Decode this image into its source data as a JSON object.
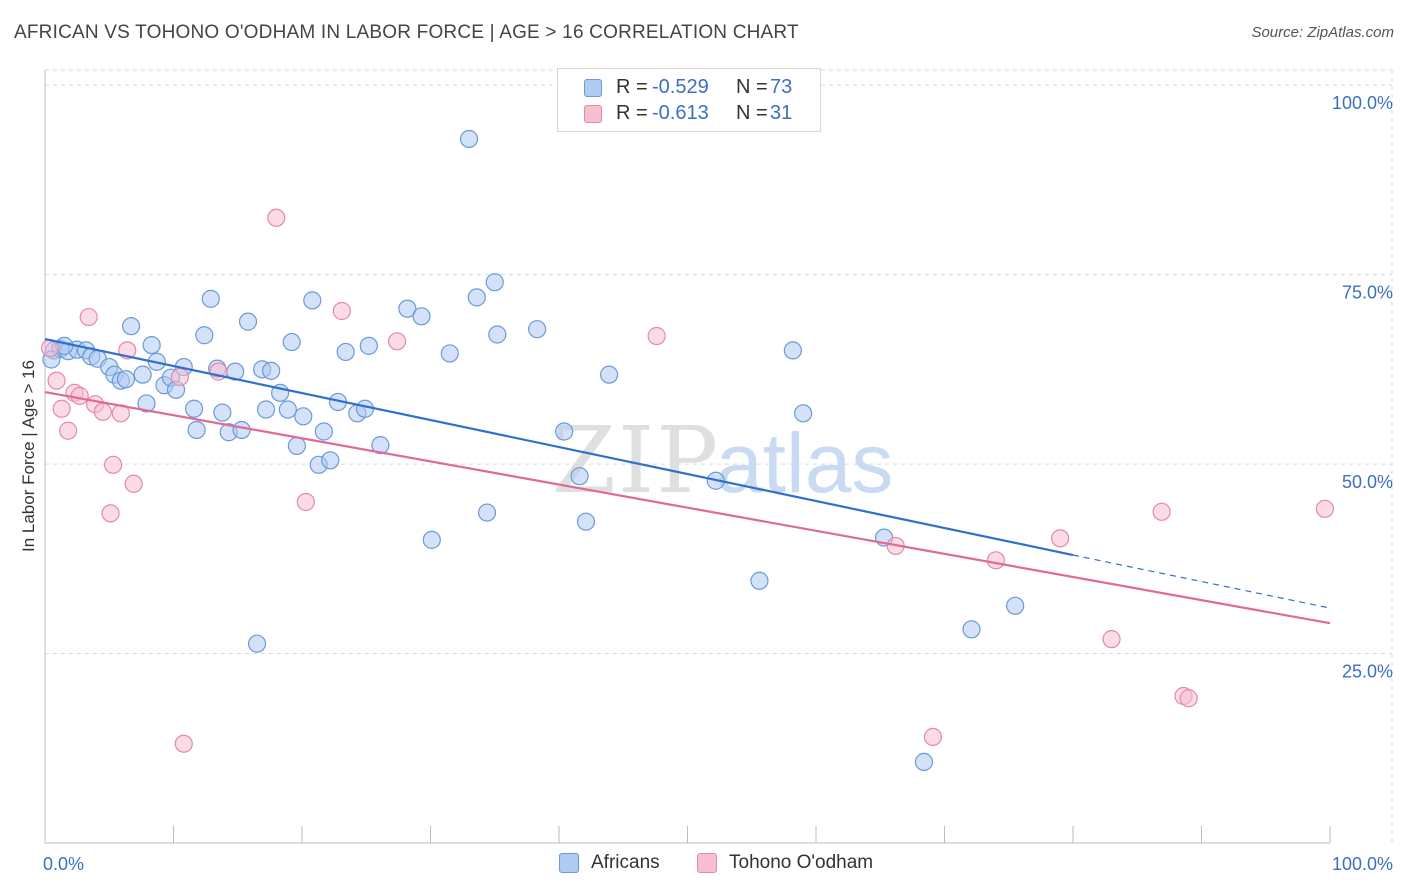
{
  "header": {
    "title": "AFRICAN VS TOHONO O'ODHAM IN LABOR FORCE | AGE > 16 CORRELATION CHART",
    "source": "Source: ZipAtlas.com"
  },
  "legend_top": {
    "rows": [
      {
        "r_label": "R =",
        "r_value": "-0.529",
        "n_label": "N =",
        "n_value": "73"
      },
      {
        "r_label": "R =",
        "r_value": "-0.613",
        "n_label": "N =",
        "n_value": "31"
      }
    ]
  },
  "legend_bottom": {
    "items": [
      {
        "label": "Africans"
      },
      {
        "label": "Tohono O'odham"
      }
    ]
  },
  "watermark": {
    "zip": "ZIP",
    "atlas": "atlas"
  },
  "colors": {
    "blue_fill": "#aecbf2",
    "blue_stroke": "#6b9ad6",
    "blue_line": "#2f6fce",
    "pink_fill": "#f7bdd0",
    "pink_stroke": "#e48aa8",
    "pink_line": "#e06a95",
    "tick_text": "#3c6fc4",
    "grid": "#d9d9d9"
  },
  "chart_data": {
    "type": "scatter",
    "title": "AFRICAN VS TOHONO O'ODHAM IN LABOR FORCE | AGE > 16 CORRELATION CHART",
    "xlabel": "",
    "ylabel": "In Labor Force | Age > 16",
    "xlim": [
      0,
      100
    ],
    "ylim": [
      0,
      102
    ],
    "x_tick_labels": [
      "0.0%",
      "100.0%"
    ],
    "y_ticks": [
      25,
      50,
      75,
      100
    ],
    "y_tick_labels": [
      "25.0%",
      "50.0%",
      "75.0%",
      "100.0%"
    ],
    "grid": true,
    "legend_placement": "top-center",
    "series": [
      {
        "name": "Africans",
        "color": "#aecbf2",
        "r": -0.529,
        "n": 73,
        "trend": {
          "x": [
            0,
            80
          ],
          "y": [
            66.5,
            38.0
          ]
        },
        "trend_dashed": {
          "x": [
            80,
            100
          ],
          "y": [
            38.0,
            31.0
          ]
        },
        "points": [
          {
            "x": 0.7,
            "y": 65.0
          },
          {
            "x": 1.2,
            "y": 65.2
          },
          {
            "x": 1.8,
            "y": 64.9
          },
          {
            "x": 2.5,
            "y": 65.1
          },
          {
            "x": 3.2,
            "y": 65.0
          },
          {
            "x": 3.6,
            "y": 64.2
          },
          {
            "x": 4.1,
            "y": 63.9
          },
          {
            "x": 5.0,
            "y": 62.8
          },
          {
            "x": 5.4,
            "y": 61.8
          },
          {
            "x": 5.9,
            "y": 61.0
          },
          {
            "x": 6.3,
            "y": 61.2
          },
          {
            "x": 6.7,
            "y": 68.2
          },
          {
            "x": 7.6,
            "y": 61.8
          },
          {
            "x": 7.9,
            "y": 58.0
          },
          {
            "x": 8.3,
            "y": 65.7
          },
          {
            "x": 8.7,
            "y": 63.5
          },
          {
            "x": 9.3,
            "y": 60.4
          },
          {
            "x": 9.8,
            "y": 61.4
          },
          {
            "x": 10.2,
            "y": 59.8
          },
          {
            "x": 10.8,
            "y": 62.8
          },
          {
            "x": 11.6,
            "y": 57.3
          },
          {
            "x": 11.8,
            "y": 54.5
          },
          {
            "x": 12.4,
            "y": 67.0
          },
          {
            "x": 12.9,
            "y": 71.8
          },
          {
            "x": 13.4,
            "y": 62.6
          },
          {
            "x": 13.8,
            "y": 56.8
          },
          {
            "x": 14.3,
            "y": 54.2
          },
          {
            "x": 14.8,
            "y": 62.2
          },
          {
            "x": 15.3,
            "y": 54.5
          },
          {
            "x": 15.8,
            "y": 68.8
          },
          {
            "x": 16.5,
            "y": 26.3
          },
          {
            "x": 16.9,
            "y": 62.5
          },
          {
            "x": 17.2,
            "y": 57.2
          },
          {
            "x": 17.6,
            "y": 62.3
          },
          {
            "x": 18.3,
            "y": 59.4
          },
          {
            "x": 18.9,
            "y": 57.2
          },
          {
            "x": 19.2,
            "y": 66.1
          },
          {
            "x": 19.6,
            "y": 52.4
          },
          {
            "x": 20.1,
            "y": 56.3
          },
          {
            "x": 20.8,
            "y": 71.6
          },
          {
            "x": 21.3,
            "y": 49.9
          },
          {
            "x": 21.7,
            "y": 54.3
          },
          {
            "x": 22.2,
            "y": 50.5
          },
          {
            "x": 22.8,
            "y": 58.2
          },
          {
            "x": 23.4,
            "y": 64.8
          },
          {
            "x": 24.3,
            "y": 56.7
          },
          {
            "x": 24.9,
            "y": 57.3
          },
          {
            "x": 25.2,
            "y": 65.6
          },
          {
            "x": 26.1,
            "y": 52.5
          },
          {
            "x": 28.2,
            "y": 70.5
          },
          {
            "x": 29.3,
            "y": 69.5
          },
          {
            "x": 30.1,
            "y": 40.0
          },
          {
            "x": 31.5,
            "y": 64.6
          },
          {
            "x": 33.0,
            "y": 92.9
          },
          {
            "x": 33.6,
            "y": 72.0
          },
          {
            "x": 34.4,
            "y": 43.6
          },
          {
            "x": 35.0,
            "y": 74.0
          },
          {
            "x": 35.2,
            "y": 67.1
          },
          {
            "x": 38.3,
            "y": 67.8
          },
          {
            "x": 40.4,
            "y": 54.3
          },
          {
            "x": 41.6,
            "y": 48.4
          },
          {
            "x": 42.1,
            "y": 42.4
          },
          {
            "x": 43.9,
            "y": 61.8
          },
          {
            "x": 52.2,
            "y": 47.8
          },
          {
            "x": 55.6,
            "y": 34.6
          },
          {
            "x": 58.2,
            "y": 65.0
          },
          {
            "x": 59.0,
            "y": 56.7
          },
          {
            "x": 65.3,
            "y": 40.3
          },
          {
            "x": 68.4,
            "y": 10.7
          },
          {
            "x": 72.1,
            "y": 28.2
          },
          {
            "x": 75.5,
            "y": 31.3
          },
          {
            "x": 0.5,
            "y": 63.8
          },
          {
            "x": 1.5,
            "y": 65.6
          }
        ]
      },
      {
        "name": "Tohono O'odham",
        "color": "#f7bdd0",
        "r": -0.613,
        "n": 31,
        "trend": {
          "x": [
            0,
            100
          ],
          "y": [
            59.5,
            29.0
          ]
        },
        "points": [
          {
            "x": 0.4,
            "y": 65.3
          },
          {
            "x": 0.9,
            "y": 61.0
          },
          {
            "x": 1.3,
            "y": 57.3
          },
          {
            "x": 1.8,
            "y": 54.4
          },
          {
            "x": 2.3,
            "y": 59.4
          },
          {
            "x": 2.7,
            "y": 59.0
          },
          {
            "x": 3.4,
            "y": 69.4
          },
          {
            "x": 3.9,
            "y": 57.9
          },
          {
            "x": 4.5,
            "y": 56.9
          },
          {
            "x": 5.1,
            "y": 43.5
          },
          {
            "x": 5.3,
            "y": 49.9
          },
          {
            "x": 5.9,
            "y": 56.7
          },
          {
            "x": 6.4,
            "y": 65.0
          },
          {
            "x": 6.9,
            "y": 47.4
          },
          {
            "x": 10.8,
            "y": 13.1
          },
          {
            "x": 13.5,
            "y": 62.2
          },
          {
            "x": 18.0,
            "y": 82.5
          },
          {
            "x": 20.3,
            "y": 45.0
          },
          {
            "x": 23.1,
            "y": 70.2
          },
          {
            "x": 27.4,
            "y": 66.2
          },
          {
            "x": 47.6,
            "y": 66.9
          },
          {
            "x": 66.2,
            "y": 39.2
          },
          {
            "x": 69.1,
            "y": 14.0
          },
          {
            "x": 74.0,
            "y": 37.3
          },
          {
            "x": 79.0,
            "y": 40.2
          },
          {
            "x": 83.0,
            "y": 26.9
          },
          {
            "x": 86.9,
            "y": 43.7
          },
          {
            "x": 88.6,
            "y": 19.4
          },
          {
            "x": 89.0,
            "y": 19.1
          },
          {
            "x": 99.6,
            "y": 44.1
          },
          {
            "x": 10.5,
            "y": 61.5
          }
        ]
      }
    ]
  }
}
